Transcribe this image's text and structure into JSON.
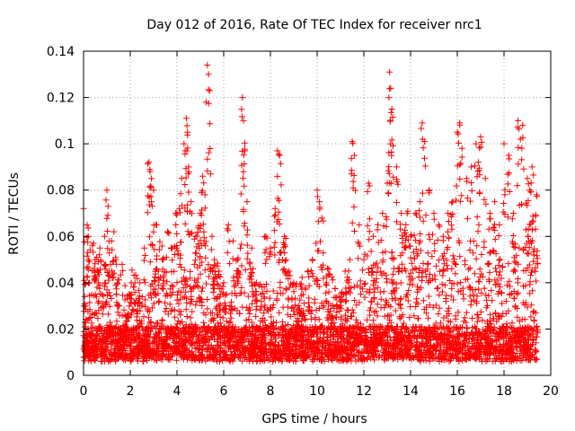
{
  "chart_data": {
    "type": "scatter",
    "title": "Day 012 of 2016, Rate Of TEC Index for receiver nrc1",
    "xlabel": "GPS time / hours",
    "ylabel": "ROTI / TECUs",
    "xlim": [
      0,
      20
    ],
    "ylim": [
      0,
      0.14
    ],
    "xticks": [
      0,
      2,
      4,
      6,
      8,
      10,
      12,
      14,
      16,
      18,
      20
    ],
    "xtick_labels": [
      "0",
      "2",
      "4",
      "6",
      "8",
      "10",
      "12",
      "14",
      "16",
      "18",
      "20"
    ],
    "yticks": [
      0,
      0.02,
      0.04,
      0.06,
      0.08,
      0.1,
      0.12,
      0.14
    ],
    "ytick_labels": [
      "0",
      "0.02",
      "0.04",
      "0.06",
      "0.08",
      "0.1",
      "0.12",
      "0.14"
    ],
    "grid": true,
    "marker": "+",
    "color": "#ff0000",
    "series": [
      {
        "name": "ROTI",
        "x": [
          0.0,
          0.05,
          0.1,
          0.15,
          0.2,
          0.25,
          0.3,
          0.4,
          0.5,
          0.6,
          0.7,
          0.8,
          0.9,
          1.0,
          1.05,
          1.1,
          1.2,
          1.3,
          1.4,
          1.5,
          1.6,
          1.7,
          1.8,
          1.9,
          2.0,
          2.2,
          2.4,
          2.6,
          2.8,
          2.85,
          2.9,
          3.0,
          3.1,
          3.2,
          3.4,
          3.6,
          3.8,
          3.95,
          4.0,
          4.1,
          4.2,
          4.3,
          4.4,
          4.45,
          4.5,
          4.6,
          4.8,
          5.0,
          5.1,
          5.2,
          5.3,
          5.35,
          5.4,
          5.5,
          5.6,
          5.8,
          6.0,
          6.2,
          6.4,
          6.6,
          6.8,
          6.85,
          6.9,
          7.0,
          7.2,
          7.4,
          7.6,
          7.8,
          8.0,
          8.2,
          8.3,
          8.4,
          8.6,
          8.8,
          9.0,
          9.2,
          9.4,
          9.6,
          9.8,
          10.0,
          10.1,
          10.2,
          10.4,
          10.6,
          10.8,
          11.0,
          11.2,
          11.4,
          11.5,
          11.6,
          11.8,
          12.0,
          12.2,
          12.4,
          12.6,
          12.8,
          13.0,
          13.1,
          13.15,
          13.2,
          13.4,
          13.6,
          13.8,
          14.0,
          14.2,
          14.4,
          14.5,
          14.6,
          14.8,
          15.0,
          15.2,
          15.4,
          15.6,
          15.8,
          16.0,
          16.1,
          16.2,
          16.4,
          16.6,
          16.8,
          16.9,
          17.0,
          17.2,
          17.4,
          17.6,
          17.8,
          18.0,
          18.2,
          18.4,
          18.6,
          18.7,
          18.8,
          19.0,
          19.1,
          19.2,
          19.4
        ],
        "y": [
          0.072,
          0.03,
          0.018,
          0.065,
          0.06,
          0.04,
          0.025,
          0.015,
          0.05,
          0.045,
          0.055,
          0.035,
          0.06,
          0.08,
          0.073,
          0.045,
          0.058,
          0.062,
          0.048,
          0.03,
          0.02,
          0.018,
          0.022,
          0.025,
          0.035,
          0.04,
          0.03,
          0.055,
          0.092,
          0.088,
          0.075,
          0.08,
          0.065,
          0.045,
          0.05,
          0.062,
          0.055,
          0.065,
          0.07,
          0.072,
          0.085,
          0.1,
          0.111,
          0.105,
          0.09,
          0.075,
          0.06,
          0.07,
          0.086,
          0.078,
          0.134,
          0.13,
          0.123,
          0.06,
          0.05,
          0.045,
          0.04,
          0.065,
          0.058,
          0.05,
          0.12,
          0.11,
          0.097,
          0.075,
          0.055,
          0.04,
          0.035,
          0.06,
          0.055,
          0.072,
          0.097,
          0.095,
          0.06,
          0.045,
          0.04,
          0.03,
          0.035,
          0.045,
          0.05,
          0.08,
          0.075,
          0.068,
          0.04,
          0.03,
          0.025,
          0.03,
          0.045,
          0.05,
          0.101,
          0.095,
          0.065,
          0.05,
          0.083,
          0.06,
          0.065,
          0.07,
          0.083,
          0.131,
          0.124,
          0.115,
          0.09,
          0.07,
          0.065,
          0.06,
          0.07,
          0.075,
          0.109,
          0.101,
          0.08,
          0.07,
          0.065,
          0.06,
          0.07,
          0.075,
          0.105,
          0.109,
          0.098,
          0.085,
          0.09,
          0.1,
          0.092,
          0.103,
          0.085,
          0.07,
          0.075,
          0.065,
          0.1,
          0.095,
          0.07,
          0.11,
          0.102,
          0.108,
          0.085,
          0.08,
          0.09,
          0.078
        ]
      }
    ],
    "dense_band": {
      "baseline_mean": 0.014,
      "baseline_spread": 0.009,
      "activity_level": [
        [
          0.0,
          0.022
        ],
        [
          0.5,
          0.028
        ],
        [
          1.0,
          0.03
        ],
        [
          1.5,
          0.022
        ],
        [
          2.0,
          0.016
        ],
        [
          2.5,
          0.018
        ],
        [
          3.0,
          0.02
        ],
        [
          3.5,
          0.028
        ],
        [
          4.0,
          0.032
        ],
        [
          4.5,
          0.03
        ],
        [
          5.0,
          0.03
        ],
        [
          5.5,
          0.022
        ],
        [
          6.0,
          0.018
        ],
        [
          6.5,
          0.022
        ],
        [
          7.0,
          0.024
        ],
        [
          7.5,
          0.02
        ],
        [
          8.0,
          0.02
        ],
        [
          8.5,
          0.024
        ],
        [
          9.0,
          0.018
        ],
        [
          9.5,
          0.016
        ],
        [
          10.0,
          0.026
        ],
        [
          10.5,
          0.016
        ],
        [
          11.0,
          0.014
        ],
        [
          11.5,
          0.022
        ],
        [
          12.0,
          0.018
        ],
        [
          12.5,
          0.026
        ],
        [
          13.0,
          0.036
        ],
        [
          13.5,
          0.032
        ],
        [
          14.0,
          0.034
        ],
        [
          14.5,
          0.034
        ],
        [
          15.0,
          0.032
        ],
        [
          15.5,
          0.03
        ],
        [
          16.0,
          0.036
        ],
        [
          16.5,
          0.034
        ],
        [
          17.0,
          0.034
        ],
        [
          17.5,
          0.028
        ],
        [
          18.0,
          0.03
        ],
        [
          18.5,
          0.036
        ],
        [
          19.0,
          0.034
        ],
        [
          19.4,
          0.03
        ]
      ],
      "x_range": [
        0.0,
        19.45
      ],
      "count": 4200
    }
  }
}
